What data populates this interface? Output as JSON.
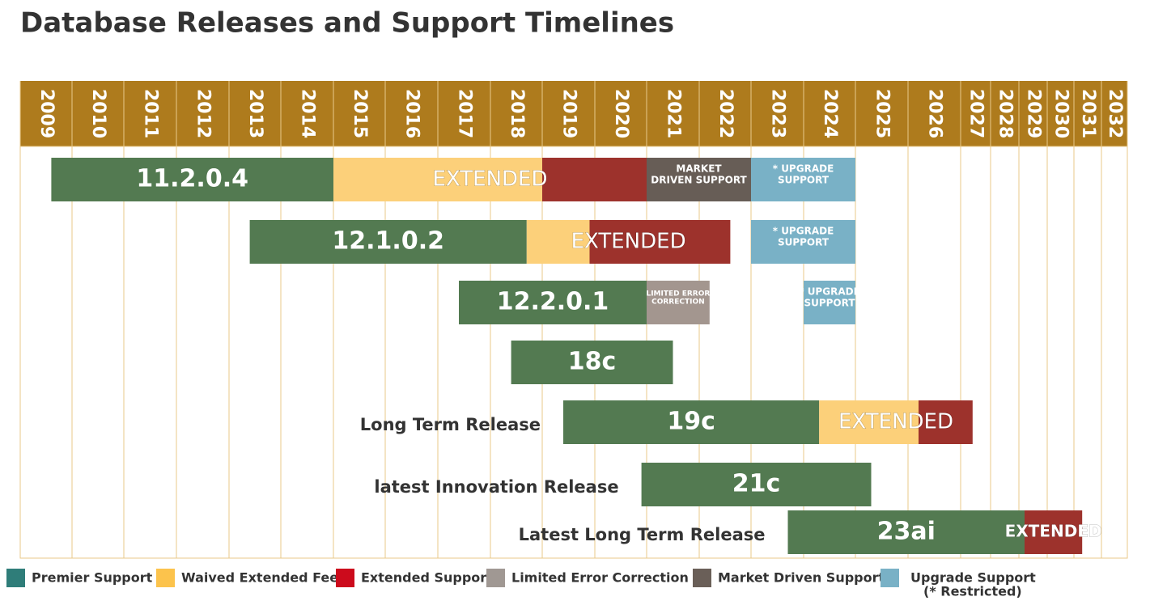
{
  "chart_data": {
    "type": "timeline",
    "title": "Database Releases and Support Timelines",
    "header_color": "#ae7b1d",
    "grid_color": "#e8c98a",
    "categories": [
      "2009",
      "2010",
      "2011",
      "2012",
      "2013",
      "2014",
      "2015",
      "2016",
      "2017",
      "2018",
      "2019",
      "2020",
      "2021",
      "2022",
      "2023",
      "2024",
      "2025",
      "2026",
      "2027",
      "2028",
      "2029",
      "2030",
      "2031",
      "2032"
    ],
    "series": [
      {
        "name": "Premier Support",
        "color": "#2f7d79",
        "bar_color": "#537a51"
      },
      {
        "name": "Waived Extended Fee",
        "color": "#fcc34c",
        "bar_color": "#fcd07a"
      },
      {
        "name": "Extended Support",
        "color": "#cc0b1c",
        "bar_color": "#9d322c"
      },
      {
        "name": "Limited Error Correction",
        "color": "#a09893",
        "bar_color": "#a3968f"
      },
      {
        "name": "Market Driven Support",
        "color": "#6a5f58",
        "bar_color": "#675d56"
      },
      {
        "name": "Upgrade Support",
        "note": "(* Restricted)",
        "color": "#79b1c6",
        "bar_color": "#79b1c6"
      }
    ],
    "rows": [
      {
        "name": "11.2.0.4",
        "extended_text": "EXTENDED",
        "segments": [
          {
            "kind": 0,
            "start": 2009.6,
            "end": 2015
          },
          {
            "kind": 1,
            "start": 2015,
            "end": 2019
          },
          {
            "kind": 2,
            "start": 2019,
            "end": 2021
          },
          {
            "kind": 4,
            "start": 2021,
            "end": 2023,
            "text": [
              "MARKET",
              "DRIVEN SUPPORT"
            ]
          },
          {
            "kind": 5,
            "start": 2023,
            "end": 2025,
            "text": [
              "* UPGRADE",
              "SUPPORT"
            ]
          }
        ]
      },
      {
        "name": "12.1.0.2",
        "extended_text": "EXTENDED",
        "segments": [
          {
            "kind": 0,
            "start": 2013.4,
            "end": 2018.7
          },
          {
            "kind": 1,
            "start": 2018.7,
            "end": 2019.9
          },
          {
            "kind": 2,
            "start": 2019.9,
            "end": 2022.6
          },
          {
            "kind": 5,
            "start": 2023,
            "end": 2025,
            "text": [
              "* UPGRADE",
              "SUPPORT"
            ]
          }
        ]
      },
      {
        "name": "12.2.0.1",
        "segments": [
          {
            "kind": 0,
            "start": 2017.4,
            "end": 2021
          },
          {
            "kind": 3,
            "start": 2021,
            "end": 2022.2,
            "text": [
              "LIMITED ERROR",
              "CORRECTION"
            ]
          },
          {
            "kind": 5,
            "start": 2024,
            "end": 2025,
            "text": [
              "* UPGRADE",
              "SUPPORT"
            ]
          }
        ]
      },
      {
        "name": "18c",
        "segments": [
          {
            "kind": 0,
            "start": 2018.4,
            "end": 2021.5
          }
        ]
      },
      {
        "name": "19c",
        "label": "Long Term Release",
        "extended_text": "EXTENDED",
        "segments": [
          {
            "kind": 0,
            "start": 2019.4,
            "end": 2024.3
          },
          {
            "kind": 1,
            "start": 2024.3,
            "end": 2026.2
          },
          {
            "kind": 2,
            "start": 2026.2,
            "end": 2027.4
          }
        ]
      },
      {
        "name": "21c",
        "label": "latest Innovation Release",
        "segments": [
          {
            "kind": 0,
            "start": 2020.9,
            "end": 2025.3
          }
        ]
      },
      {
        "name": "23ai",
        "label": "Latest Long Term Release",
        "segments": [
          {
            "kind": 0,
            "start": 2023.7,
            "end": 2029.2
          },
          {
            "kind": 2,
            "start": 2029.2,
            "end": 2031.3,
            "text": [
              "EXTENDED"
            ]
          }
        ]
      }
    ]
  }
}
